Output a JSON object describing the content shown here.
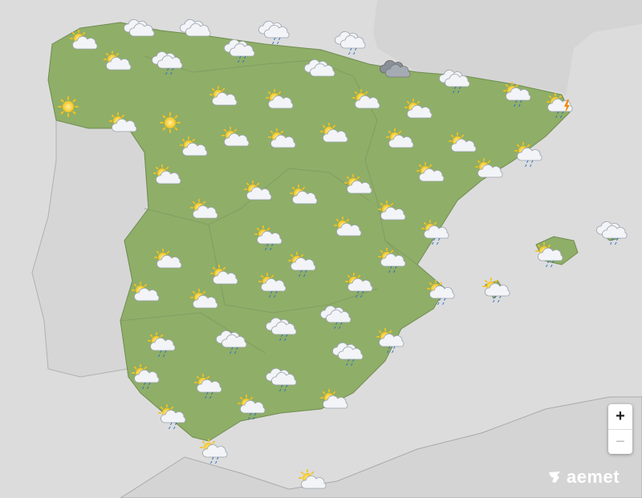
{
  "map": {
    "colors": {
      "sea": "#dcdcdc",
      "land_other": "#d6d6d6",
      "spain": "#8fae68",
      "borders": "#9a9a9a"
    },
    "icon_legend": [
      "sun",
      "sun-cloud",
      "sun-cloud-rain",
      "cloud",
      "cloud-dark",
      "cloud-rain",
      "storm"
    ],
    "forecast_icons": [
      "sun-cloud",
      "cloud",
      "cloud",
      "cloud-rain",
      "cloud-rain",
      "sun-cloud",
      "cloud-rain",
      "cloud-rain",
      "cloud",
      "cloud-dark",
      "cloud-rain",
      "sun-cloud-rain",
      "storm",
      "sun",
      "sun-cloud",
      "sun",
      "sun-cloud",
      "sun-cloud",
      "sun-cloud",
      "sun-cloud",
      "sun-cloud",
      "sun-cloud",
      "sun-cloud",
      "sun-cloud",
      "sun-cloud",
      "sun-cloud",
      "sun-cloud-rain",
      "sun-cloud",
      "sun-cloud",
      "sun-cloud",
      "sun-cloud",
      "sun-cloud",
      "sun-cloud",
      "sun-cloud",
      "sun-cloud",
      "sun-cloud",
      "sun-cloud-rain",
      "sun-cloud-rain",
      "cloud-rain",
      "sun-cloud-rain",
      "sun-cloud",
      "sun-cloud-rain",
      "sun-cloud-rain",
      "sun-cloud",
      "sun-cloud-rain",
      "sun-cloud-rain",
      "sun-cloud",
      "sun-cloud",
      "sun-cloud-rain",
      "sun-cloud-rain",
      "cloud-rain",
      "cloud-rain",
      "cloud-rain",
      "sun-cloud-rain",
      "sun-cloud-rain",
      "cloud-rain",
      "sun-cloud-rain",
      "sun-cloud-rain",
      "cloud-rain",
      "sun-cloud-rain",
      "sun-cloud",
      "sun-cloud-rain",
      "sun-cloud-rain",
      "sun-cloud"
    ]
  },
  "controls": {
    "zoom_in": "+",
    "zoom_out": "−"
  },
  "brand": {
    "logo_text": "aemet"
  }
}
